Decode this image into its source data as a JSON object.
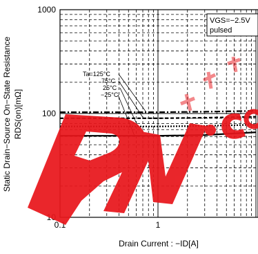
{
  "chart_data": {
    "type": "line",
    "title": "",
    "xlabel": "Drain Current : −ID[A]",
    "ylabel_line1": "Static Drain−Source On−State Resistance",
    "ylabel_line2": "RDS(on)[mΩ]",
    "x_scale": "log",
    "y_scale": "log",
    "xlim": [
      0.1,
      10
    ],
    "ylim": [
      10,
      1000
    ],
    "x_tick_labels": [
      "0.1",
      "1"
    ],
    "y_tick_labels": [
      "10",
      "100",
      "1000"
    ],
    "grid": true,
    "conditions": [
      "VGS=−2.5V",
      "pulsed"
    ],
    "series": [
      {
        "name": "Ta=125°C",
        "x": [
          0.1,
          0.3,
          1,
          3,
          10
        ],
        "y": [
          103,
          103,
          103,
          104,
          106
        ],
        "color": "#000000",
        "dash": "8,3,2,3",
        "label_text": "Ta=125°C"
      },
      {
        "name": "75°C",
        "x": [
          0.1,
          0.3,
          1,
          3,
          10
        ],
        "y": [
          90,
          90,
          90,
          91,
          93
        ],
        "color": "#000000",
        "dash": "5,3",
        "label_text": "75°C"
      },
      {
        "name": "25°C",
        "x": [
          0.1,
          0.3,
          1,
          3,
          10
        ],
        "y": [
          75,
          75,
          75,
          76,
          78
        ],
        "color": "#000000",
        "dash": "2,2",
        "label_text": "25°C"
      },
      {
        "name": "−25°C",
        "x": [
          0.1,
          0.3,
          1,
          3,
          10
        ],
        "y": [
          61,
          61,
          61,
          62,
          66
        ],
        "color": "#000000",
        "dash": "",
        "label_text": "−25°C"
      }
    ]
  },
  "watermark": {
    "text": "于千万.com",
    "color": "#e8161b"
  }
}
